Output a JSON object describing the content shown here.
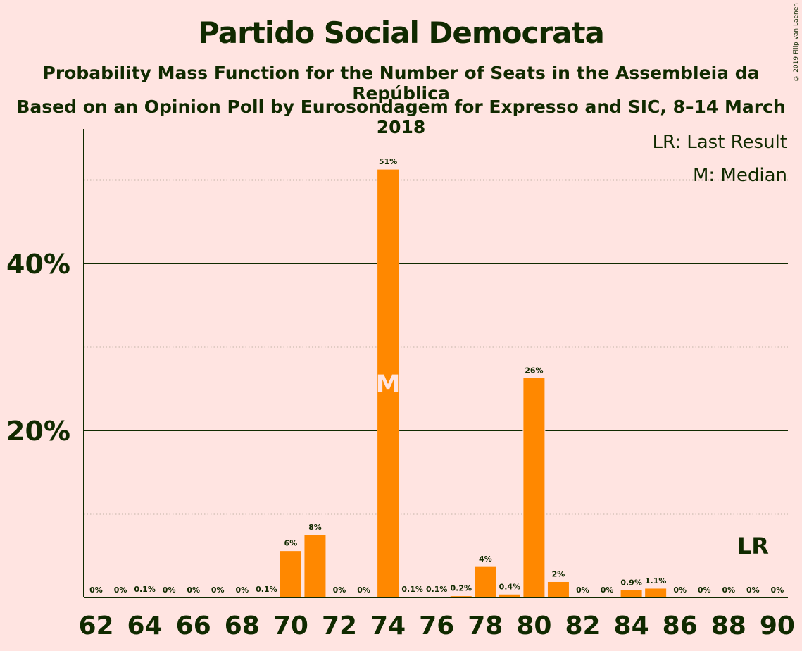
{
  "title": "Partido Social Democrata",
  "subtitle1": "Probability Mass Function for the Number of Seats in the Assembleia da República",
  "subtitle2": "Based on an Opinion Poll by Eurosondagem for Expresso and SIC, 8–14 March 2018",
  "copyright": "© 2019 Filip van Laenen",
  "legend": {
    "last_result": "LR: Last Result",
    "median": "M: Median"
  },
  "colors": {
    "bar": "#FF8800",
    "background": "#FFE4E1",
    "text": "#102a00",
    "median_mark": "#FFE4E1"
  },
  "chart_data": {
    "type": "bar",
    "xlabel": "",
    "ylabel": "",
    "ylim": [
      0,
      55
    ],
    "x": [
      62,
      63,
      64,
      65,
      66,
      67,
      68,
      69,
      70,
      71,
      72,
      73,
      74,
      75,
      76,
      77,
      78,
      79,
      80,
      81,
      82,
      83,
      84,
      85,
      86,
      87,
      88,
      89,
      90
    ],
    "values": [
      0,
      0,
      0.1,
      0,
      0,
      0,
      0,
      0.1,
      5.6,
      7.5,
      0,
      0,
      51.3,
      0.1,
      0.1,
      0.2,
      3.7,
      0.4,
      26.3,
      1.9,
      0,
      0,
      0.9,
      1.1,
      0,
      0,
      0,
      0,
      0
    ],
    "labels": [
      "0%",
      "0%",
      "0.1%",
      "0%",
      "0%",
      "0%",
      "0%",
      "0.1%",
      "6%",
      "8%",
      "0%",
      "0%",
      "51%",
      "0.1%",
      "0.1%",
      "0.2%",
      "4%",
      "0.4%",
      "26%",
      "2%",
      "0%",
      "0%",
      "0.9%",
      "1.1%",
      "0%",
      "0%",
      "0%",
      "0%",
      "0%"
    ],
    "x_ticks": [
      "62",
      "64",
      "66",
      "68",
      "70",
      "72",
      "74",
      "76",
      "78",
      "80",
      "82",
      "84",
      "86",
      "88",
      "90"
    ],
    "y_ticks_major": [
      {
        "value": 20,
        "label": "20%"
      },
      {
        "value": 40,
        "label": "40%"
      }
    ],
    "y_ticks_minor": [
      10,
      30,
      50
    ],
    "median_seat": 74,
    "median_label": "M",
    "last_result_seat": 89,
    "last_result_label": "LR",
    "grid": true,
    "legend_position": "top-right"
  }
}
